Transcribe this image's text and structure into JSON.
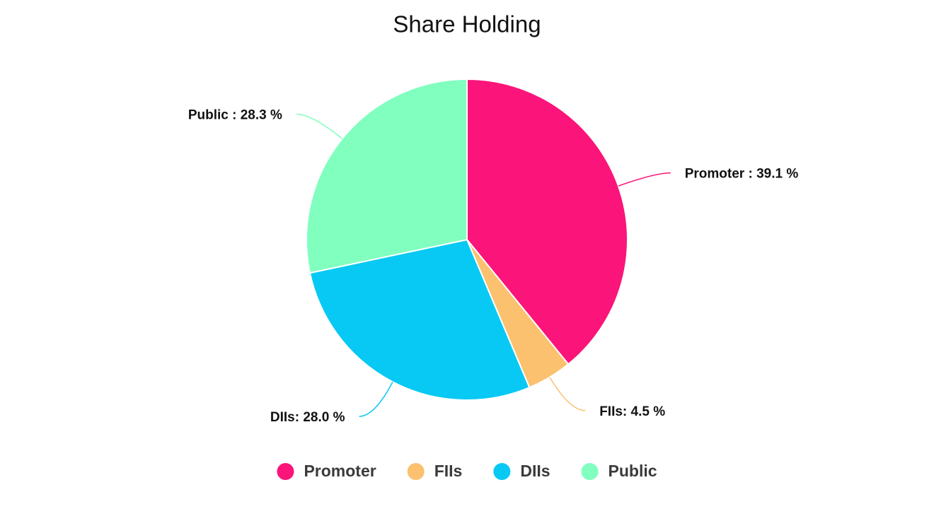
{
  "chart_data": {
    "type": "pie",
    "title": "Share Holding",
    "categories": [
      "Promoter",
      "FIIs",
      "DIIs",
      "Public"
    ],
    "values": [
      39.1,
      4.5,
      28.0,
      28.3
    ],
    "value_labels": [
      "Promoter : 39.1 %",
      "FIIs: 4.5 %",
      "DIIs: 28.0 %",
      "Public : 28.3 %"
    ],
    "colors": [
      "#fb1479",
      "#fbc16f",
      "#08c9f3",
      "#80ffbf"
    ],
    "legend": "bottom"
  }
}
